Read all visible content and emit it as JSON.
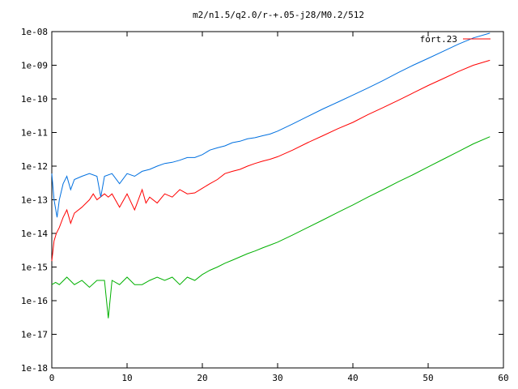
{
  "chart_data": {
    "type": "line",
    "title": "m2/n1.5/q2.0/r-+.05-j28/M0.2/512",
    "xlabel": "",
    "ylabel": "",
    "xlim": [
      0,
      60
    ],
    "ylim": [
      1e-18,
      1e-08
    ],
    "yscale": "log",
    "grid": false,
    "legend_position": "top-right",
    "x_ticks": [
      0,
      10,
      20,
      30,
      40,
      50,
      60
    ],
    "x_tick_labels": [
      "0",
      "10",
      "20",
      "30",
      "40",
      "50",
      "60"
    ],
    "y_ticks": [
      1e-18,
      1e-17,
      1e-16,
      1e-15,
      1e-14,
      1e-13,
      1e-12,
      1e-11,
      1e-10,
      1e-09,
      1e-08
    ],
    "y_tick_labels": [
      "1e-18",
      "1e-17",
      "1e-16",
      "1e-15",
      "1e-14",
      "1e-13",
      "1e-12",
      "1e-11",
      "1e-10",
      "1e-09",
      "1e-08"
    ],
    "series": [
      {
        "name": "fort.23",
        "color": "#ff0000",
        "x": [
          0,
          0.3,
          0.6,
          1,
          1.5,
          2,
          2.5,
          3,
          4,
          5,
          5.5,
          6,
          7,
          7.5,
          8,
          9,
          10,
          11,
          12,
          12.5,
          13,
          14,
          15,
          16,
          17,
          18,
          19,
          20,
          21,
          22,
          23,
          24,
          25,
          26,
          27,
          28,
          29,
          30,
          32,
          34,
          36,
          38,
          40,
          42,
          44,
          46,
          48,
          50,
          52,
          54,
          56,
          58.2
        ],
        "y": [
          1.5e-15,
          6e-15,
          1e-14,
          1.5e-14,
          3e-14,
          5e-14,
          2e-14,
          4e-14,
          6e-14,
          1e-13,
          1.5e-13,
          1e-13,
          1.5e-13,
          1.2e-13,
          1.5e-13,
          6e-14,
          1.5e-13,
          5e-14,
          2e-13,
          8e-14,
          1.2e-13,
          8e-14,
          1.5e-13,
          1.2e-13,
          2e-13,
          1.5e-13,
          1.6e-13,
          2.2e-13,
          3e-13,
          4e-13,
          6e-13,
          7e-13,
          8e-13,
          1e-12,
          1.2e-12,
          1.4e-12,
          1.6e-12,
          1.9e-12,
          3e-12,
          5e-12,
          8e-12,
          1.3e-11,
          2e-11,
          3.4e-11,
          5.5e-11,
          9e-11,
          1.5e-10,
          2.5e-10,
          4e-10,
          6.5e-10,
          1e-09,
          1.4e-09
        ]
      },
      {
        "name": "",
        "color": "#0070e0",
        "x": [
          0,
          0.3,
          0.7,
          1,
          1.5,
          2,
          2.5,
          3,
          4,
          5,
          6,
          6.5,
          7,
          8,
          9,
          10,
          11,
          12,
          13,
          14,
          15,
          16,
          17,
          18,
          19,
          20,
          21,
          22,
          23,
          24,
          25,
          26,
          27,
          28,
          29,
          30,
          32,
          34,
          36,
          38,
          40,
          42,
          44,
          46,
          48,
          50,
          52,
          54,
          56,
          58.2
        ],
        "y": [
          6e-13,
          1e-13,
          3e-14,
          1e-13,
          3e-13,
          5e-13,
          2e-13,
          4e-13,
          5e-13,
          6e-13,
          5e-13,
          1.2e-13,
          5e-13,
          6e-13,
          3e-13,
          6e-13,
          5e-13,
          7e-13,
          8e-13,
          1e-12,
          1.2e-12,
          1.3e-12,
          1.5e-12,
          1.8e-12,
          1.8e-12,
          2.2e-12,
          3e-12,
          3.5e-12,
          4e-12,
          5e-12,
          5.5e-12,
          6.5e-12,
          7e-12,
          8e-12,
          9e-12,
          1.1e-11,
          1.8e-11,
          3e-11,
          5e-11,
          8e-11,
          1.3e-10,
          2.1e-10,
          3.5e-10,
          6e-10,
          1e-09,
          1.6e-09,
          2.6e-09,
          4.2e-09,
          6.5e-09,
          9e-09
        ]
      },
      {
        "name": "",
        "color": "#00b000",
        "x": [
          0,
          0.5,
          1,
          2,
          3,
          4,
          5,
          6,
          7,
          7.5,
          8,
          9,
          10,
          11,
          12,
          13,
          14,
          15,
          16,
          17,
          18,
          19,
          20,
          21,
          22,
          23,
          24,
          25,
          26,
          27,
          28,
          29,
          30,
          32,
          34,
          36,
          38,
          40,
          42,
          44,
          46,
          48,
          50,
          52,
          54,
          56,
          58.2
        ],
        "y": [
          3e-16,
          3.5e-16,
          3e-16,
          5e-16,
          3e-16,
          4e-16,
          2.5e-16,
          4e-16,
          4e-16,
          3e-17,
          4e-16,
          3e-16,
          5e-16,
          3e-16,
          3e-16,
          4e-16,
          5e-16,
          4e-16,
          5e-16,
          3e-16,
          5e-16,
          4e-16,
          6e-16,
          8e-16,
          1e-15,
          1.3e-15,
          1.6e-15,
          2e-15,
          2.5e-15,
          3e-15,
          3.7e-15,
          4.5e-15,
          5.5e-15,
          9e-15,
          1.5e-14,
          2.5e-14,
          4.2e-14,
          7e-14,
          1.2e-13,
          2e-13,
          3.4e-13,
          5.6e-13,
          9.5e-13,
          1.6e-12,
          2.7e-12,
          4.6e-12,
          7.5e-12
        ]
      }
    ]
  }
}
